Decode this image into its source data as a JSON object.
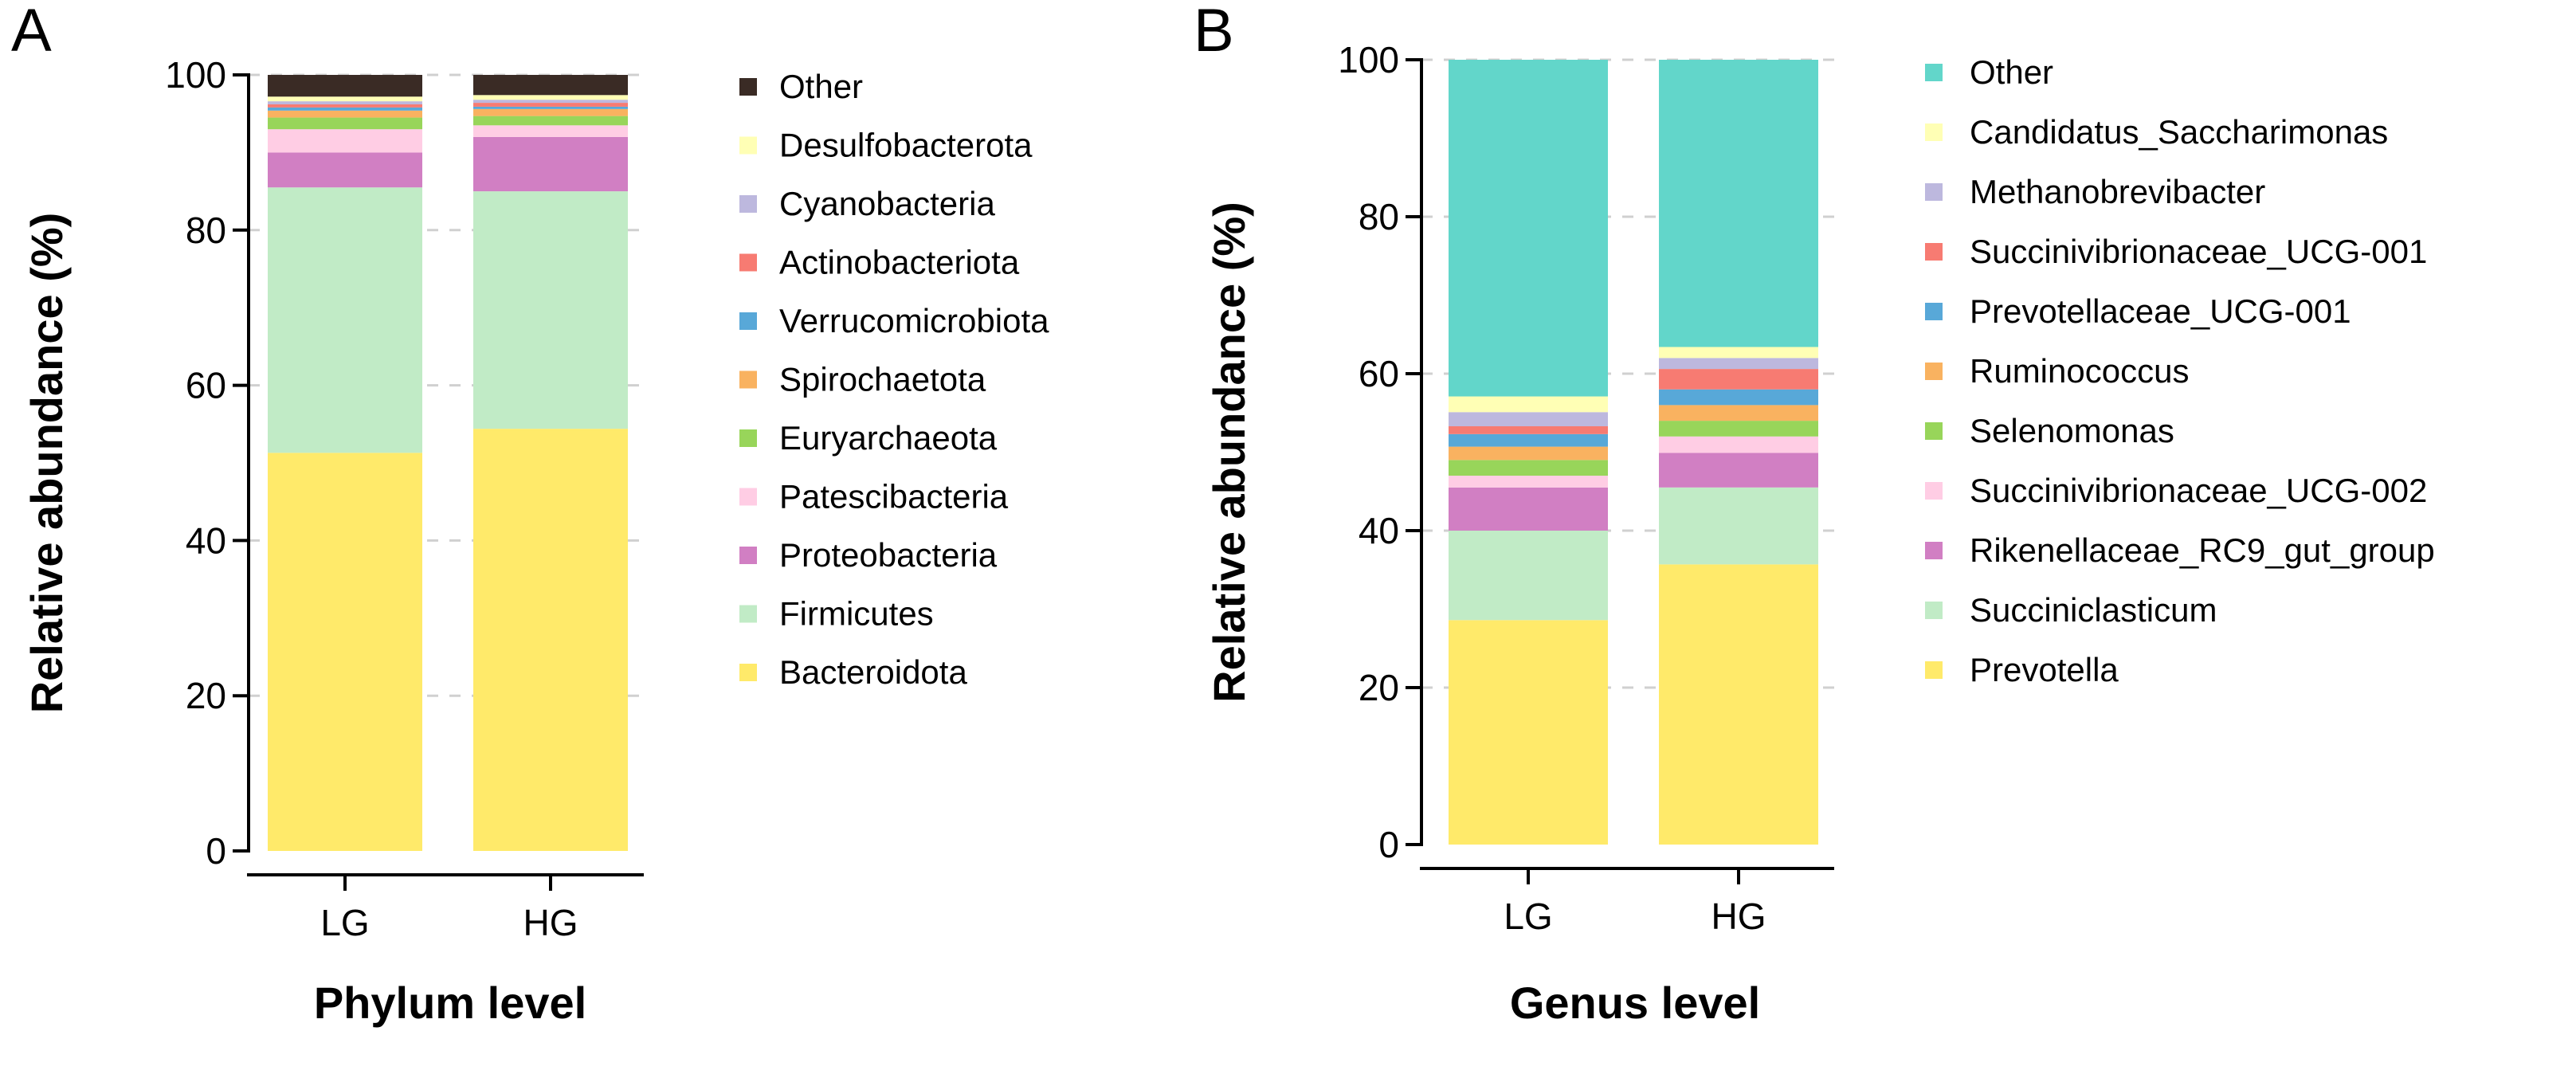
{
  "chart_data": [
    {
      "type": "bar",
      "stacked": true,
      "panel": "A",
      "title": "",
      "xlabel": "Phylum level",
      "ylabel": "Relative abundance (%)",
      "ylim": [
        0,
        100
      ],
      "yticks": [
        0,
        20,
        40,
        60,
        80,
        100
      ],
      "categories": [
        "LG",
        "HG"
      ],
      "legend_position": "right",
      "series": [
        {
          "name": "Bacteroidota",
          "color": "#FFEA6A",
          "values": [
            51.3,
            54.4
          ]
        },
        {
          "name": "Firmicutes",
          "color": "#C1EBC6",
          "values": [
            34.2,
            30.6
          ]
        },
        {
          "name": "Proteobacteria",
          "color": "#D17FC3",
          "values": [
            4.5,
            7.0
          ]
        },
        {
          "name": "Patescibacteria",
          "color": "#FFCDE4",
          "values": [
            3.0,
            1.5
          ]
        },
        {
          "name": "Euryarchaeota",
          "color": "#98D55A",
          "values": [
            1.5,
            1.2
          ]
        },
        {
          "name": "Spirochaetota",
          "color": "#F9B260",
          "values": [
            0.9,
            0.9
          ]
        },
        {
          "name": "Verrucomicrobiota",
          "color": "#58A8D8",
          "values": [
            0.4,
            0.3
          ]
        },
        {
          "name": "Actinobacteriota",
          "color": "#F77B72",
          "values": [
            0.4,
            0.5
          ]
        },
        {
          "name": "Cyanobacteria",
          "color": "#BDB8DE",
          "values": [
            0.4,
            0.4
          ]
        },
        {
          "name": "Desulfobacterota",
          "color": "#FFFFB5",
          "values": [
            0.6,
            0.6
          ]
        },
        {
          "name": "Other",
          "color": "#3A2B25",
          "values": [
            2.8,
            2.6
          ]
        }
      ]
    },
    {
      "type": "bar",
      "stacked": true,
      "panel": "B",
      "title": "",
      "xlabel": "Genus level",
      "ylabel": "Relative abundance (%)",
      "ylim": [
        0,
        100
      ],
      "yticks": [
        0,
        20,
        40,
        60,
        80,
        100
      ],
      "categories": [
        "LG",
        "HG"
      ],
      "legend_position": "right",
      "series": [
        {
          "name": "Prevotella",
          "color": "#FFEA6A",
          "values": [
            28.6,
            35.7
          ]
        },
        {
          "name": "Succiniclasticum",
          "color": "#C1EBC6",
          "values": [
            11.4,
            9.8
          ]
        },
        {
          "name": "Rikenellaceae_RC9_gut_group",
          "color": "#D17FC3",
          "values": [
            5.5,
            4.4
          ]
        },
        {
          "name": "Succinivibrionaceae_UCG-002",
          "color": "#FFCDE4",
          "values": [
            1.5,
            2.1
          ]
        },
        {
          "name": "Selenomonas",
          "color": "#98D55A",
          "values": [
            2.0,
            2.0
          ]
        },
        {
          "name": "Ruminococcus",
          "color": "#F9B260",
          "values": [
            1.7,
            2.0
          ]
        },
        {
          "name": "Prevotellaceae_UCG-001",
          "color": "#58A8D8",
          "values": [
            1.6,
            2.0
          ]
        },
        {
          "name": "Succinivibrionaceae_UCG-001",
          "color": "#F77B72",
          "values": [
            1.0,
            2.6
          ]
        },
        {
          "name": "Methanobrevibacter",
          "color": "#BDB8DE",
          "values": [
            1.8,
            1.4
          ]
        },
        {
          "name": "Candidatus_Saccharimonas",
          "color": "#FFFFB5",
          "values": [
            2.0,
            1.4
          ]
        },
        {
          "name": "Other",
          "color": "#62D6CA",
          "values": [
            42.9,
            36.6
          ]
        }
      ]
    }
  ]
}
